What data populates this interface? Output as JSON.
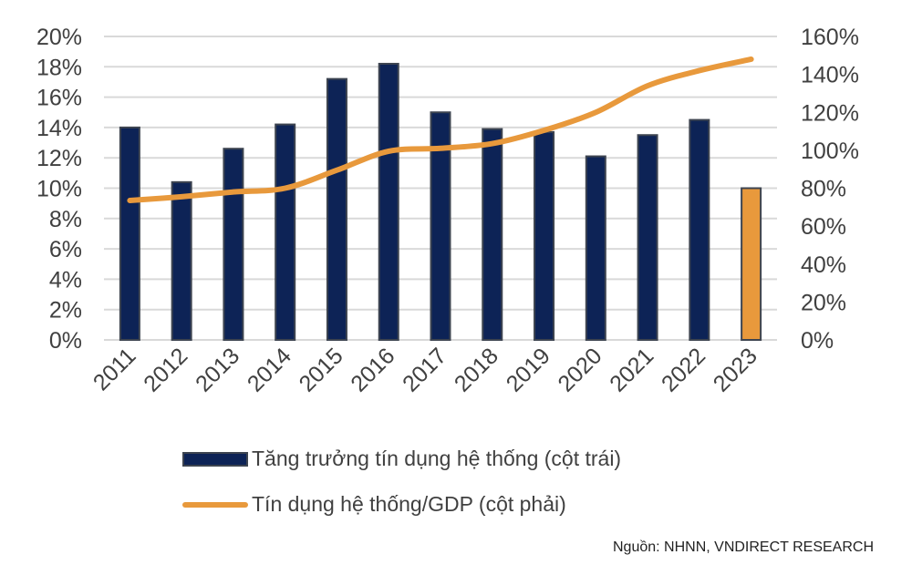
{
  "chart_data": {
    "type": "bar+line",
    "title": "",
    "categories": [
      "2011",
      "2012",
      "2013",
      "2014",
      "2015",
      "2016",
      "2017",
      "2018",
      "2019",
      "2020",
      "2021",
      "2022",
      "2023"
    ],
    "series": [
      {
        "name": "Tăng trưởng tín dụng hệ thống (cột trái)",
        "type": "bar",
        "axis": "left",
        "values": [
          14.0,
          10.4,
          12.6,
          14.2,
          17.2,
          18.2,
          15.0,
          13.9,
          13.7,
          12.1,
          13.5,
          14.5,
          10.0
        ],
        "color": "#0d2356",
        "highlight": {
          "index": 12,
          "color": "#e8993c"
        }
      },
      {
        "name": "Tín dụng hệ thống/GDP (cột phải)",
        "type": "line",
        "axis": "right",
        "values": [
          73.5,
          75.5,
          78,
          80,
          89.5,
          99.5,
          101,
          103.5,
          110.5,
          120,
          134,
          142,
          148
        ],
        "color": "#e8993c"
      }
    ],
    "left_axis": {
      "ylim": [
        0,
        20
      ],
      "ticks": [
        "0%",
        "2%",
        "4%",
        "6%",
        "8%",
        "10%",
        "12%",
        "14%",
        "16%",
        "18%",
        "20%"
      ]
    },
    "right_axis": {
      "ylim": [
        0,
        160
      ],
      "ticks": [
        "0%",
        "20%",
        "40%",
        "60%",
        "80%",
        "100%",
        "120%",
        "140%",
        "160%"
      ]
    },
    "grid": true,
    "legend_position": "bottom"
  },
  "legend": {
    "bar_label": "Tăng trưởng tín dụng hệ thống (cột trái)",
    "line_label": "Tín dụng hệ thống/GDP (cột phải)"
  },
  "source": "Nguồn: NHNN, VNDIRECT RESEARCH"
}
